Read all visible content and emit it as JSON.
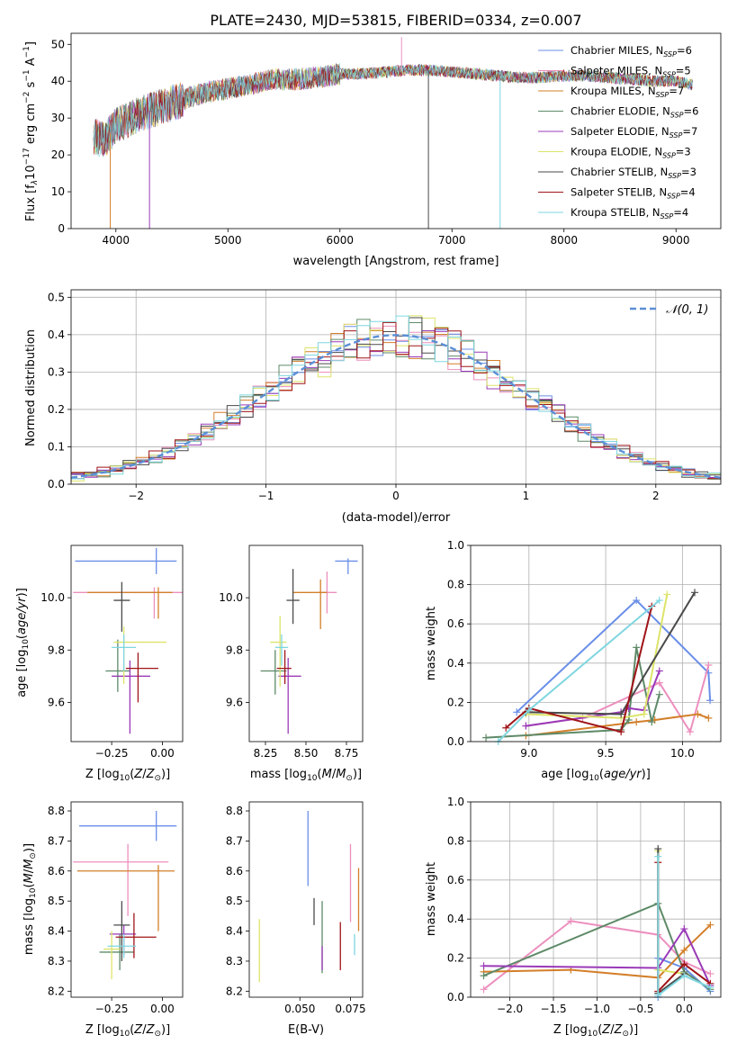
{
  "title": "PLATE=2430, MJD=53815, FIBERID=0334, z=0.007",
  "colors": {
    "series": [
      "#6a8ee8",
      "#ec8fbe",
      "#d37f2a",
      "#5e8a68",
      "#9a3ab8",
      "#dde46a",
      "#4a4a4a",
      "#a01418",
      "#7fd6e0"
    ],
    "gaussian": "#5b8fd6"
  },
  "chart_data": [
    {
      "id": "spectrum",
      "type": "line",
      "xlabel": "wavelength [Angstrom, rest frame]",
      "ylabel": "Flux [f",
      "xlim": [
        3600,
        9400
      ],
      "ylim": [
        0,
        53
      ],
      "xticks": [
        4000,
        5000,
        6000,
        7000,
        8000,
        9000
      ],
      "yticks": [
        0,
        10,
        20,
        30,
        40,
        50
      ],
      "grid": false,
      "legend": "top-right",
      "continuum": [
        [
          3800,
          25
        ],
        [
          3900,
          24
        ],
        [
          4000,
          28
        ],
        [
          4200,
          31
        ],
        [
          4400,
          33
        ],
        [
          4600,
          35
        ],
        [
          4800,
          37
        ],
        [
          5000,
          38
        ],
        [
          5200,
          39
        ],
        [
          5400,
          40.5
        ],
        [
          5600,
          40.5
        ],
        [
          5800,
          41
        ],
        [
          6000,
          42
        ],
        [
          6200,
          42
        ],
        [
          6400,
          42.5
        ],
        [
          6600,
          43
        ],
        [
          6800,
          43
        ],
        [
          7000,
          42.5
        ],
        [
          7200,
          42
        ],
        [
          7400,
          41.5
        ],
        [
          7600,
          41
        ],
        [
          7800,
          41
        ],
        [
          8000,
          41.5
        ],
        [
          8200,
          41.5
        ],
        [
          8400,
          41
        ],
        [
          8600,
          40.5
        ],
        [
          8800,
          40
        ],
        [
          9000,
          40
        ],
        [
          9150,
          39
        ]
      ],
      "spikes": [
        [
          3950,
          0
        ],
        [
          4300,
          0
        ],
        [
          6790,
          0
        ],
        [
          7430,
          0
        ],
        [
          6550,
          52
        ]
      ],
      "series": [
        {
          "name": "Chabrier MILES",
          "n": "6"
        },
        {
          "name": "Salpeter MILES",
          "n": "5"
        },
        {
          "name": "Kroupa MILES",
          "n": "7"
        },
        {
          "name": "Chabrier ELODIE",
          "n": "6"
        },
        {
          "name": "Salpeter ELODIE",
          "n": "7"
        },
        {
          "name": "Kroupa ELODIE",
          "n": "3"
        },
        {
          "name": "Chabrier STELIB",
          "n": "3"
        },
        {
          "name": "Salpeter STELIB",
          "n": "4"
        },
        {
          "name": "Kroupa STELIB",
          "n": "4"
        }
      ]
    },
    {
      "id": "residuals",
      "type": "histogram",
      "xlabel": "(data-model)/error",
      "ylabel": "Normed distribution",
      "xlim": [
        -2.5,
        2.5
      ],
      "ylim": [
        0,
        0.52
      ],
      "xticks": [
        -2,
        -1,
        0,
        1,
        2
      ],
      "yticks": [
        0.0,
        0.1,
        0.2,
        0.3,
        0.4,
        0.5
      ],
      "grid": true,
      "legend": "top-right",
      "gaussian_label": "N(0,1)",
      "bin_width": 0.1
    },
    {
      "id": "age-vs-Z",
      "type": "errorbar",
      "xlabel": "Z [log10(Z/Zsun)]",
      "ylabel": "age [log10(age/yr)]",
      "xlim": [
        -0.45,
        0.1
      ],
      "ylim": [
        9.45,
        10.2
      ],
      "xticks": [
        -0.25,
        0.0
      ],
      "yticks": [
        9.6,
        9.8,
        10.0
      ],
      "points": [
        {
          "x": -0.03,
          "y": 10.14,
          "xerr": [
            0.4,
            0.1
          ],
          "yerr": [
            0.05,
            0.05
          ]
        },
        {
          "x": -0.04,
          "y": 10.02,
          "xerr": [
            0.4,
            0.14
          ],
          "yerr": [
            0.1,
            0.02
          ]
        },
        {
          "x": -0.02,
          "y": 10.02,
          "xerr": [
            0.35,
            0.07
          ],
          "yerr": [
            0.1,
            0.02
          ]
        },
        {
          "x": -0.22,
          "y": 9.72,
          "xerr": [
            0.06,
            0.06
          ],
          "yerr": [
            0.08,
            0.12
          ]
        },
        {
          "x": -0.16,
          "y": 9.7,
          "xerr": [
            0.09,
            0.1
          ],
          "yerr": [
            0.22,
            0.06
          ]
        },
        {
          "x": -0.19,
          "y": 9.83,
          "xerr": [
            0.05,
            0.21
          ],
          "yerr": [
            0.16,
            0.06
          ]
        },
        {
          "x": -0.2,
          "y": 9.99,
          "xerr": [
            0.04,
            0.04
          ],
          "yerr": [
            0.12,
            0.07
          ]
        },
        {
          "x": -0.12,
          "y": 9.73,
          "xerr": [
            0.06,
            0.1
          ],
          "yerr": [
            0.13,
            0.06
          ]
        },
        {
          "x": -0.19,
          "y": 9.81,
          "xerr": [
            0.06,
            0.06
          ],
          "yerr": [
            0.09,
            0.05
          ]
        }
      ]
    },
    {
      "id": "age-vs-mass",
      "type": "errorbar",
      "xlabel": "mass [log10(M/Msun)]",
      "ylabel": "",
      "xlim": [
        8.15,
        8.85
      ],
      "ylim": [
        9.45,
        10.2
      ],
      "xticks": [
        8.25,
        8.5,
        8.75
      ],
      "yticks": [
        9.6,
        9.8,
        10.0
      ],
      "points": [
        {
          "x": 8.76,
          "y": 10.14,
          "xerr": [
            0.08,
            0.06
          ],
          "yerr": [
            0.05,
            0.01
          ]
        },
        {
          "x": 8.63,
          "y": 10.02,
          "xerr": [
            0.06,
            0.06
          ],
          "yerr": [
            0.08,
            0.08
          ]
        },
        {
          "x": 8.59,
          "y": 10.02,
          "xerr": [
            0.17,
            0.04
          ],
          "yerr": [
            0.14,
            0.05
          ]
        },
        {
          "x": 8.31,
          "y": 9.72,
          "xerr": [
            0.09,
            0.07
          ],
          "yerr": [
            0.09,
            0.08
          ]
        },
        {
          "x": 8.39,
          "y": 9.7,
          "xerr": [
            0.06,
            0.08
          ],
          "yerr": [
            0.22,
            0.07
          ]
        },
        {
          "x": 8.34,
          "y": 9.83,
          "xerr": [
            0.06,
            0.04
          ],
          "yerr": [
            0.17,
            0.1
          ]
        },
        {
          "x": 8.42,
          "y": 9.99,
          "xerr": [
            0.04,
            0.04
          ],
          "yerr": [
            0.09,
            0.12
          ]
        },
        {
          "x": 8.37,
          "y": 9.73,
          "xerr": [
            0.05,
            0.04
          ],
          "yerr": [
            0.06,
            0.07
          ]
        },
        {
          "x": 8.35,
          "y": 9.81,
          "xerr": [
            0.04,
            0.04
          ],
          "yerr": [
            0.07,
            0.05
          ]
        }
      ]
    },
    {
      "id": "weight-vs-age",
      "type": "line",
      "xlabel": "age [log10(age/yr)]",
      "ylabel": "mass weight",
      "xlim": [
        8.62,
        10.25
      ],
      "ylim": [
        0,
        1.0
      ],
      "xticks": [
        9.0,
        9.5,
        10.0
      ],
      "yticks": [
        0.0,
        0.2,
        0.4,
        0.6,
        0.8,
        1.0
      ],
      "grid": true,
      "series": [
        [
          [
            8.92,
            0.15
          ],
          [
            9.7,
            0.72
          ],
          [
            10.17,
            0.35
          ],
          [
            10.18,
            0.21
          ]
        ],
        [
          [
            8.98,
            0.08
          ],
          [
            9.35,
            0.12
          ],
          [
            9.85,
            0.3
          ],
          [
            10.05,
            0.05
          ],
          [
            10.17,
            0.39
          ]
        ],
        [
          [
            8.98,
            0.03
          ],
          [
            9.7,
            0.1
          ],
          [
            9.82,
            0.11
          ],
          [
            10.1,
            0.14
          ],
          [
            10.17,
            0.12
          ]
        ],
        [
          [
            8.72,
            0.02
          ],
          [
            9.6,
            0.06
          ],
          [
            9.65,
            0.11
          ],
          [
            9.7,
            0.48
          ],
          [
            9.8,
            0.1
          ],
          [
            9.85,
            0.24
          ]
        ],
        [
          [
            8.98,
            0.08
          ],
          [
            9.6,
            0.15
          ],
          [
            9.65,
            0.17
          ],
          [
            9.75,
            0.16
          ],
          [
            9.85,
            0.36
          ]
        ],
        [
          [
            8.98,
            0.14
          ],
          [
            9.6,
            0.12
          ],
          [
            9.75,
            0.14
          ],
          [
            9.9,
            0.75
          ]
        ],
        [
          [
            8.98,
            0.15
          ],
          [
            9.6,
            0.14
          ],
          [
            10.08,
            0.76
          ]
        ],
        [
          [
            8.85,
            0.07
          ],
          [
            9.0,
            0.17
          ],
          [
            9.6,
            0.05
          ],
          [
            9.8,
            0.69
          ]
        ],
        [
          [
            8.8,
            0.0
          ],
          [
            9.0,
            0.16
          ],
          [
            9.85,
            0.72
          ]
        ]
      ]
    },
    {
      "id": "mass-vs-Z",
      "type": "errorbar",
      "xlabel": "Z [log10(Z/Zsun)]",
      "ylabel": "mass [log10(M/Msun)]",
      "xlim": [
        -0.45,
        0.1
      ],
      "ylim": [
        8.18,
        8.83
      ],
      "xticks": [
        -0.25,
        0.0
      ],
      "yticks": [
        8.2,
        8.3,
        8.4,
        8.5,
        8.6,
        8.7,
        8.8
      ],
      "points": [
        {
          "x": -0.03,
          "y": 8.75,
          "xerr": [
            0.38,
            0.1
          ],
          "yerr": [
            0.05,
            0.05
          ]
        },
        {
          "x": -0.17,
          "y": 8.63,
          "xerr": [
            0.27,
            0.2
          ],
          "yerr": [
            0.18,
            0.06
          ]
        },
        {
          "x": -0.02,
          "y": 8.6,
          "xerr": [
            0.4,
            0.08
          ],
          "yerr": [
            0.2,
            0.02
          ]
        },
        {
          "x": -0.21,
          "y": 8.33,
          "xerr": [
            0.1,
            0.07
          ],
          "yerr": [
            0.06,
            0.06
          ]
        },
        {
          "x": -0.19,
          "y": 8.39,
          "xerr": [
            0.07,
            0.06
          ],
          "yerr": [
            0.07,
            0.03
          ]
        },
        {
          "x": -0.25,
          "y": 8.34,
          "xerr": [
            0.04,
            0.04
          ],
          "yerr": [
            0.1,
            0.06
          ]
        },
        {
          "x": -0.2,
          "y": 8.42,
          "xerr": [
            0.04,
            0.04
          ],
          "yerr": [
            0.12,
            0.08
          ]
        },
        {
          "x": -0.14,
          "y": 8.38,
          "xerr": [
            0.09,
            0.11
          ],
          "yerr": [
            0.07,
            0.08
          ]
        },
        {
          "x": -0.19,
          "y": 8.35,
          "xerr": [
            0.08,
            0.06
          ],
          "yerr": [
            0.04,
            0.04
          ]
        }
      ]
    },
    {
      "id": "mass-vs-ebv",
      "type": "errorbar",
      "xlabel": "E(B-V)",
      "ylabel": "",
      "xlim": [
        0.025,
        0.081
      ],
      "ylim": [
        8.18,
        8.83
      ],
      "xticks": [
        0.05,
        0.075
      ],
      "yticks": [
        8.2,
        8.3,
        8.4,
        8.5,
        8.6,
        8.7,
        8.8
      ],
      "points": [
        {
          "x": 0.054,
          "y": 8.75,
          "xerr": [
            0,
            0
          ],
          "yerr": [
            0.2,
            0.05
          ]
        },
        {
          "x": 0.075,
          "y": 8.63,
          "xerr": [
            0,
            0
          ],
          "yerr": [
            0.2,
            0.06
          ]
        },
        {
          "x": 0.079,
          "y": 8.5,
          "xerr": [
            0,
            0
          ],
          "yerr": [
            0.1,
            0.11
          ]
        },
        {
          "x": 0.061,
          "y": 8.38,
          "xerr": [
            0,
            0
          ],
          "yerr": [
            0.12,
            0.12
          ]
        },
        {
          "x": 0.061,
          "y": 8.3,
          "xerr": [
            0,
            0
          ],
          "yerr": [
            0.03,
            0.05
          ]
        },
        {
          "x": 0.03,
          "y": 8.33,
          "xerr": [
            0,
            0
          ],
          "yerr": [
            0.1,
            0.11
          ]
        },
        {
          "x": 0.057,
          "y": 8.46,
          "xerr": [
            0,
            0
          ],
          "yerr": [
            0.04,
            0.05
          ]
        },
        {
          "x": 0.07,
          "y": 8.35,
          "xerr": [
            0,
            0
          ],
          "yerr": [
            0.08,
            0.08
          ]
        },
        {
          "x": 0.077,
          "y": 8.35,
          "xerr": [
            0,
            0
          ],
          "yerr": [
            0.03,
            0.04
          ]
        }
      ]
    },
    {
      "id": "weight-vs-Z",
      "type": "line",
      "xlabel": "Z [log10(Z/Zsun)]",
      "ylabel": "mass weight",
      "xlim": [
        -2.45,
        0.42
      ],
      "ylim": [
        0,
        1.0
      ],
      "xticks": [
        -2.0,
        -1.5,
        -1.0,
        -0.5,
        0.0
      ],
      "yticks": [
        0.0,
        0.2,
        0.4,
        0.6,
        0.8,
        1.0
      ],
      "grid": true,
      "series": [
        [
          [
            -0.3,
            0.0
          ],
          [
            -0.3,
            0.2
          ],
          [
            0.0,
            0.15
          ],
          [
            0.3,
            0.03
          ]
        ],
        [
          [
            -2.3,
            0.04
          ],
          [
            -1.3,
            0.39
          ],
          [
            -0.3,
            0.32
          ],
          [
            0.0,
            0.18
          ],
          [
            0.3,
            0.12
          ]
        ],
        [
          [
            -2.3,
            0.13
          ],
          [
            -1.3,
            0.14
          ],
          [
            -0.3,
            0.1
          ],
          [
            0.0,
            0.24
          ],
          [
            0.3,
            0.37
          ]
        ],
        [
          [
            -2.3,
            0.11
          ],
          [
            -0.3,
            0.48
          ],
          [
            0.0,
            0.13
          ],
          [
            0.3,
            0.04
          ]
        ],
        [
          [
            -2.3,
            0.16
          ],
          [
            -0.3,
            0.15
          ],
          [
            0.0,
            0.35
          ],
          [
            0.3,
            0.06
          ]
        ],
        [
          [
            -0.3,
            0.75
          ],
          [
            -0.3,
            0.14
          ],
          [
            0.0,
            0.12
          ]
        ],
        [
          [
            -0.3,
            0.76
          ],
          [
            -0.3,
            0.02
          ],
          [
            0.0,
            0.12
          ]
        ],
        [
          [
            -0.3,
            0.69
          ],
          [
            -0.3,
            0.03
          ],
          [
            0.0,
            0.17
          ],
          [
            0.3,
            0.07
          ]
        ],
        [
          [
            -0.3,
            0.72
          ],
          [
            -0.3,
            0.01
          ],
          [
            0.0,
            0.11
          ],
          [
            0.3,
            0.05
          ]
        ]
      ]
    }
  ]
}
